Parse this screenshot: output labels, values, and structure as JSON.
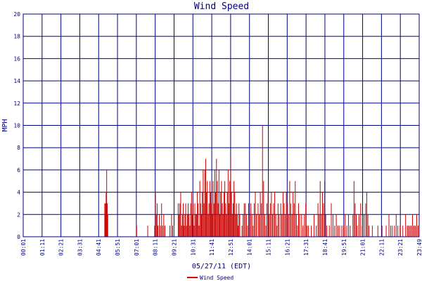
{
  "chart_data": {
    "type": "bar",
    "title": "Wind Speed",
    "xlabel": "05/27/11 (EDT)",
    "ylabel": "MPH",
    "ylim": [
      0,
      20
    ],
    "y_ticks": [
      "0",
      "2",
      "4",
      "6",
      "8",
      "10",
      "12",
      "14",
      "16",
      "18",
      "20"
    ],
    "x_ticks": [
      "00:01",
      "01:11",
      "02:21",
      "03:31",
      "04:41",
      "05:51",
      "07:01",
      "08:11",
      "09:21",
      "10:31",
      "11:41",
      "12:51",
      "14:01",
      "15:11",
      "16:21",
      "17:31",
      "18:41",
      "19:51",
      "21:01",
      "22:11",
      "23:21",
      "23:49"
    ],
    "x_range_minutes": [
      1,
      1429
    ],
    "grid": true,
    "legend_position": "bottom-center",
    "series": [
      {
        "name": "Wind Speed",
        "color": "#cc0000",
        "points": [
          [
            295,
            3
          ],
          [
            296,
            2
          ],
          [
            298,
            3
          ],
          [
            300,
            4
          ],
          [
            302,
            6
          ],
          [
            304,
            3
          ],
          [
            306,
            2
          ],
          [
            410,
            1
          ],
          [
            450,
            1
          ],
          [
            475,
            1
          ],
          [
            478,
            4
          ],
          [
            481,
            2
          ],
          [
            484,
            3
          ],
          [
            487,
            1
          ],
          [
            492,
            2
          ],
          [
            496,
            1
          ],
          [
            500,
            3
          ],
          [
            504,
            1
          ],
          [
            508,
            2
          ],
          [
            512,
            1
          ],
          [
            530,
            1
          ],
          [
            536,
            2
          ],
          [
            540,
            1
          ],
          [
            545,
            1
          ],
          [
            560,
            3
          ],
          [
            563,
            2
          ],
          [
            566,
            3
          ],
          [
            569,
            4
          ],
          [
            572,
            1
          ],
          [
            575,
            2
          ],
          [
            578,
            3
          ],
          [
            581,
            1
          ],
          [
            584,
            2
          ],
          [
            587,
            3
          ],
          [
            590,
            1
          ],
          [
            593,
            2
          ],
          [
            596,
            3
          ],
          [
            599,
            2
          ],
          [
            602,
            1
          ],
          [
            605,
            3
          ],
          [
            608,
            4
          ],
          [
            611,
            2
          ],
          [
            614,
            3
          ],
          [
            617,
            1
          ],
          [
            620,
            3
          ],
          [
            623,
            2
          ],
          [
            626,
            2
          ],
          [
            629,
            4
          ],
          [
            632,
            3
          ],
          [
            635,
            1
          ],
          [
            638,
            5
          ],
          [
            641,
            3
          ],
          [
            644,
            2
          ],
          [
            647,
            4
          ],
          [
            650,
            6
          ],
          [
            653,
            3
          ],
          [
            656,
            6
          ],
          [
            659,
            7
          ],
          [
            662,
            4
          ],
          [
            665,
            5
          ],
          [
            668,
            2
          ],
          [
            671,
            3
          ],
          [
            674,
            5
          ],
          [
            677,
            4
          ],
          [
            680,
            3
          ],
          [
            683,
            2
          ],
          [
            686,
            5
          ],
          [
            689,
            3
          ],
          [
            692,
            6
          ],
          [
            695,
            4
          ],
          [
            698,
            7
          ],
          [
            701,
            5
          ],
          [
            704,
            3
          ],
          [
            707,
            6
          ],
          [
            710,
            2
          ],
          [
            713,
            4
          ],
          [
            716,
            5
          ],
          [
            719,
            3
          ],
          [
            722,
            2
          ],
          [
            725,
            4
          ],
          [
            728,
            5
          ],
          [
            731,
            3
          ],
          [
            734,
            2
          ],
          [
            737,
            4
          ],
          [
            740,
            6
          ],
          [
            743,
            3
          ],
          [
            746,
            5
          ],
          [
            749,
            7
          ],
          [
            752,
            4
          ],
          [
            755,
            2
          ],
          [
            758,
            3
          ],
          [
            761,
            5
          ],
          [
            764,
            4
          ],
          [
            767,
            2
          ],
          [
            770,
            3
          ],
          [
            773,
            2
          ],
          [
            776,
            1
          ],
          [
            779,
            3
          ],
          [
            782,
            2
          ],
          [
            790,
            1
          ],
          [
            794,
            2
          ],
          [
            798,
            3
          ],
          [
            802,
            3
          ],
          [
            806,
            2
          ],
          [
            810,
            1
          ],
          [
            814,
            3
          ],
          [
            818,
            2
          ],
          [
            822,
            3
          ],
          [
            826,
            2
          ],
          [
            830,
            1
          ],
          [
            834,
            3
          ],
          [
            838,
            4
          ],
          [
            842,
            2
          ],
          [
            848,
            3
          ],
          [
            852,
            2
          ],
          [
            856,
            4
          ],
          [
            860,
            3
          ],
          [
            864,
            10
          ],
          [
            868,
            5
          ],
          [
            872,
            2
          ],
          [
            876,
            1
          ],
          [
            880,
            3
          ],
          [
            884,
            4
          ],
          [
            888,
            2
          ],
          [
            892,
            3
          ],
          [
            896,
            4
          ],
          [
            900,
            2
          ],
          [
            904,
            3
          ],
          [
            908,
            4
          ],
          [
            912,
            2
          ],
          [
            916,
            1
          ],
          [
            920,
            3
          ],
          [
            924,
            2
          ],
          [
            930,
            3
          ],
          [
            934,
            2
          ],
          [
            938,
            4
          ],
          [
            942,
            3
          ],
          [
            946,
            2
          ],
          [
            950,
            4
          ],
          [
            954,
            3
          ],
          [
            958,
            2
          ],
          [
            962,
            5
          ],
          [
            966,
            3
          ],
          [
            970,
            2
          ],
          [
            974,
            4
          ],
          [
            978,
            3
          ],
          [
            982,
            5
          ],
          [
            986,
            2
          ],
          [
            990,
            1
          ],
          [
            994,
            3
          ],
          [
            998,
            2
          ],
          [
            1005,
            2
          ],
          [
            1010,
            1
          ],
          [
            1015,
            2
          ],
          [
            1020,
            3
          ],
          [
            1025,
            1
          ],
          [
            1030,
            1
          ],
          [
            1040,
            1
          ],
          [
            1050,
            2
          ],
          [
            1058,
            1
          ],
          [
            1064,
            3
          ],
          [
            1068,
            2
          ],
          [
            1072,
            5
          ],
          [
            1076,
            2
          ],
          [
            1080,
            4
          ],
          [
            1084,
            3
          ],
          [
            1088,
            5
          ],
          [
            1092,
            2
          ],
          [
            1096,
            1
          ],
          [
            1105,
            1
          ],
          [
            1112,
            3
          ],
          [
            1118,
            2
          ],
          [
            1124,
            1
          ],
          [
            1130,
            2
          ],
          [
            1136,
            1
          ],
          [
            1142,
            1
          ],
          [
            1150,
            1
          ],
          [
            1156,
            1
          ],
          [
            1162,
            2
          ],
          [
            1168,
            1
          ],
          [
            1174,
            2
          ],
          [
            1180,
            1
          ],
          [
            1190,
            2
          ],
          [
            1194,
            5
          ],
          [
            1198,
            3
          ],
          [
            1202,
            2
          ],
          [
            1206,
            1
          ],
          [
            1212,
            2
          ],
          [
            1218,
            3
          ],
          [
            1224,
            1
          ],
          [
            1230,
            2
          ],
          [
            1236,
            3
          ],
          [
            1240,
            4
          ],
          [
            1244,
            2
          ],
          [
            1248,
            1
          ],
          [
            1260,
            1
          ],
          [
            1280,
            1
          ],
          [
            1295,
            1
          ],
          [
            1310,
            1
          ],
          [
            1320,
            2
          ],
          [
            1326,
            1
          ],
          [
            1332,
            1
          ],
          [
            1340,
            1
          ],
          [
            1346,
            2
          ],
          [
            1352,
            1
          ],
          [
            1360,
            1
          ],
          [
            1370,
            1
          ],
          [
            1380,
            2
          ],
          [
            1386,
            1
          ],
          [
            1390,
            1
          ],
          [
            1395,
            1
          ],
          [
            1400,
            1
          ],
          [
            1405,
            2
          ],
          [
            1410,
            1
          ],
          [
            1415,
            1
          ],
          [
            1420,
            2
          ],
          [
            1425,
            1
          ]
        ]
      }
    ]
  }
}
